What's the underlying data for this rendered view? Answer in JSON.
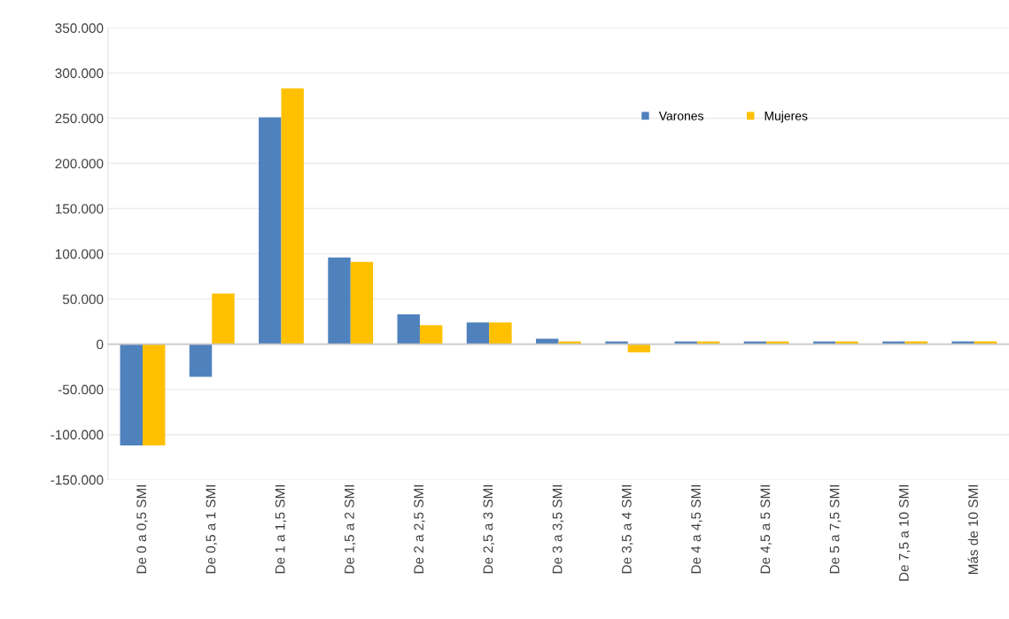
{
  "chart_data": {
    "type": "bar",
    "categories": [
      "De 0 a 0,5 SMI",
      "De 0,5 a 1 SMI",
      "De 1 a 1,5 SMI",
      "De 1,5 a 2 SMI",
      "De 2 a 2,5 SMI",
      "De 2,5 a 3 SMI",
      "De 3 a 3,5 SMI",
      "De 3,5 a 4 SMI",
      "De 4 a 4,5 SMI",
      "De 4,5 a 5 SMI",
      "De 5 a 7,5 SMI",
      "De 7,5 a 10 SMI",
      "Más de 10 SMI"
    ],
    "series": [
      {
        "name": "Varones",
        "color": "#4f81bd",
        "values": [
          -112000,
          -36000,
          251000,
          96000,
          33000,
          24000,
          6000,
          3000,
          3000,
          3000,
          3000,
          3000,
          3000
        ]
      },
      {
        "name": "Mujeres",
        "color": "#ffc000",
        "values": [
          -112000,
          56000,
          283000,
          91000,
          21000,
          24000,
          3000,
          -9000,
          3000,
          3000,
          3000,
          3000,
          3000
        ]
      }
    ],
    "ylim": [
      -150000,
      350000
    ],
    "yticks": [
      {
        "value": -150000,
        "label": "-150.000"
      },
      {
        "value": -100000,
        "label": "-100.000"
      },
      {
        "value": -50000,
        "label": "-50.000"
      },
      0,
      {
        "value": 50000,
        "label": "50.000"
      },
      {
        "value": 100000,
        "label": "100.000"
      },
      {
        "value": 150000,
        "label": "150.000"
      },
      {
        "value": 200000,
        "label": "200.000"
      },
      {
        "value": 250000,
        "label": "250.000"
      },
      {
        "value": 300000,
        "label": "300.000"
      },
      {
        "value": 350000,
        "label": "350.000"
      }
    ],
    "grid": "y",
    "legend": "top right"
  }
}
